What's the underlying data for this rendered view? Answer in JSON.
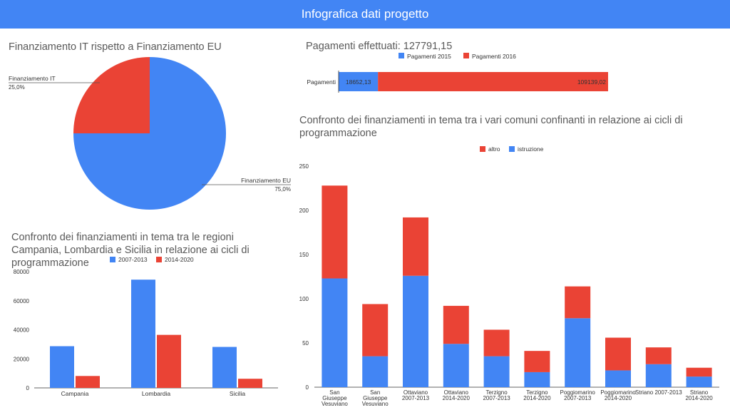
{
  "header": {
    "title": "Infografica dati progetto"
  },
  "chart_data": [
    {
      "type": "pie",
      "title": "Finanziamento IT rispetto a Finanziamento EU",
      "slices": [
        {
          "label": "Finanziamento IT",
          "value": 25.0,
          "display": "25,0%",
          "color": "#ea4335"
        },
        {
          "label": "Finanziamento EU",
          "value": 75.0,
          "display": "75,0%",
          "color": "#4285f4"
        }
      ]
    },
    {
      "type": "bar",
      "orientation": "horizontal",
      "stacked": true,
      "title": "Pagamenti effettuati: 127791,15",
      "categories": [
        "Pagamenti"
      ],
      "series": [
        {
          "name": "Pagamenti 2015",
          "color": "#4285f4",
          "values": [
            18652.13
          ],
          "labels": [
            "18652,13"
          ]
        },
        {
          "name": "Pagamenti 2016",
          "color": "#ea4335",
          "values": [
            109139.02
          ],
          "labels": [
            "109139,02"
          ]
        }
      ],
      "legend": "top"
    },
    {
      "type": "bar",
      "title": "Confronto dei finanziamenti in tema tra le regioni Campania, Lombardia e Sicilia in relazione ai cicli di programmazione",
      "categories": [
        "Campania",
        "Lombardia",
        "Sicilia"
      ],
      "series": [
        {
          "name": "2007-2013",
          "color": "#4285f4",
          "values": [
            28700,
            74500,
            28200
          ]
        },
        {
          "name": "2014-2020",
          "color": "#ea4335",
          "values": [
            8200,
            36500,
            6300
          ]
        }
      ],
      "ylim": [
        0,
        80000
      ],
      "yticks": [
        0,
        20000,
        40000,
        60000,
        80000
      ],
      "legend": "top",
      "grid": false
    },
    {
      "type": "bar",
      "stacked": true,
      "title": "Confronto dei finanziamenti in tema tra i vari comuni confinanti in relazione ai cicli di programmazione",
      "categories": [
        [
          "San",
          "Giuseppe",
          "Vesuviano"
        ],
        [
          "San",
          "Giuseppe",
          "Vesuviano"
        ],
        [
          "Ottaviano",
          "2007-2013"
        ],
        [
          "Ottaviano",
          "2014-2020"
        ],
        [
          "Terzigno",
          "2007-2013"
        ],
        [
          "Terzigno",
          "2014-2020"
        ],
        [
          "Poggiomarino",
          "2007-2013"
        ],
        [
          "Poggiomarino",
          "2014-2020"
        ],
        [
          "Striano 2007-2013"
        ],
        [
          "Striano",
          "2014-2020"
        ]
      ],
      "series": [
        {
          "name": "istruzione",
          "color": "#4285f4",
          "values": [
            123,
            35,
            126,
            49,
            35,
            17,
            78,
            19,
            26,
            12
          ]
        },
        {
          "name": "altro",
          "color": "#ea4335",
          "values": [
            105,
            59,
            66,
            43,
            30,
            24,
            36,
            37,
            19,
            10
          ]
        }
      ],
      "legend_order": [
        "altro",
        "istruzione"
      ],
      "ylim": [
        0,
        250
      ],
      "yticks": [
        0,
        50,
        100,
        150,
        200,
        250
      ],
      "legend": "top",
      "grid": false
    }
  ]
}
